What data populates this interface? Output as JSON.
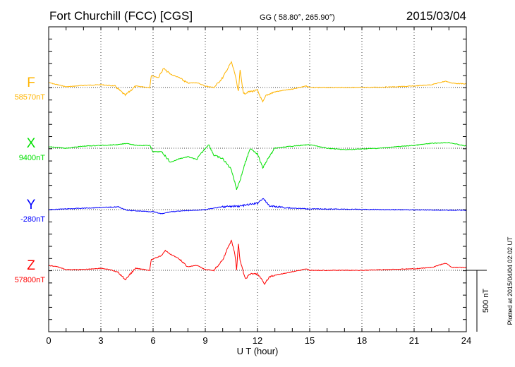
{
  "header": {
    "station": "Fort Churchill (FCC)  [CGS]",
    "coords": "GG ( 58.80°, 265.90°)",
    "date": "2015/03/04"
  },
  "footer": {
    "plotted": "Plotted at 2015/04/04 02:02 UT"
  },
  "chart_data": {
    "type": "line",
    "xlabel": "U T (hour)",
    "xlim": [
      0,
      24
    ],
    "xticks": [
      "0",
      "3",
      "6",
      "9",
      "12",
      "15",
      "18",
      "21",
      "24"
    ],
    "grid": "dotted vertical every 3 hours, dotted baseline per component",
    "scale_bar_label": "500 nT",
    "scale_bar_nT": 500,
    "series": [
      {
        "name": "F",
        "baseline_label": "58570nT",
        "color": "#ffb400",
        "x": [
          0,
          0.5,
          1,
          2,
          3,
          3.8,
          4.4,
          5,
          5.8,
          5.9,
          6.3,
          6.6,
          7,
          7.5,
          8,
          8.5,
          9,
          9.5,
          10,
          10.4,
          10.5,
          10.7,
          10.9,
          11,
          11.2,
          11.5,
          12,
          12.3,
          12.5,
          13,
          14,
          14.8,
          15,
          18,
          20,
          21,
          22,
          22.8,
          23.2,
          24
        ],
        "y": [
          40,
          23,
          6,
          17,
          23,
          12,
          -63,
          12,
          0,
          98,
          80,
          155,
          109,
          80,
          35,
          40,
          12,
          0,
          80,
          184,
          207,
          115,
          -35,
          138,
          -52,
          -35,
          -23,
          -121,
          -63,
          -35,
          -12,
          12,
          0,
          0,
          6,
          12,
          23,
          52,
          35,
          29
        ]
      },
      {
        "name": "X",
        "baseline_label": "9400nT",
        "color": "#00e000",
        "x": [
          0,
          1,
          2,
          3,
          4,
          4.5,
          5,
          5.8,
          6,
          6.5,
          7,
          7.5,
          8,
          8.5,
          9,
          9.2,
          9.5,
          10,
          10.5,
          10.8,
          11,
          11.3,
          11.6,
          12,
          12.3,
          12.6,
          13,
          14,
          15,
          16,
          17,
          18,
          19,
          20,
          21,
          22,
          23,
          24
        ],
        "y": [
          12,
          0,
          17,
          23,
          29,
          40,
          23,
          23,
          -29,
          -29,
          -115,
          -86,
          -69,
          -92,
          0,
          29,
          -58,
          -86,
          -173,
          -334,
          -259,
          -115,
          0,
          -46,
          -161,
          -86,
          0,
          17,
          29,
          0,
          -12,
          -6,
          0,
          12,
          23,
          40,
          46,
          17
        ]
      },
      {
        "name": "Y",
        "baseline_label": "-280nT",
        "color": "#0000ff",
        "x": [
          0,
          4,
          4.5,
          6,
          6.5,
          7,
          9,
          10,
          11,
          12,
          12.3,
          12.7,
          14,
          15,
          24
        ],
        "y": [
          0,
          23,
          -6,
          -17,
          -35,
          -17,
          0,
          23,
          29,
          52,
          92,
          29,
          12,
          6,
          -6
        ]
      },
      {
        "name": "Z",
        "baseline_label": "57800nT",
        "color": "#ff0000",
        "x": [
          0,
          0.5,
          1,
          2,
          3,
          3.5,
          4,
          4.4,
          5,
          5.8,
          5.9,
          6.5,
          6.7,
          7,
          7.5,
          8,
          8.5,
          9,
          9.5,
          10,
          10.5,
          10.7,
          10.8,
          10.9,
          11,
          11.3,
          11.6,
          12,
          12.4,
          12.7,
          13,
          14,
          14.8,
          15,
          18,
          21,
          22,
          22.8,
          23.2,
          24
        ],
        "y": [
          40,
          29,
          6,
          6,
          17,
          6,
          -17,
          -75,
          17,
          0,
          86,
          121,
          161,
          132,
          92,
          29,
          40,
          6,
          0,
          86,
          247,
          132,
          0,
          219,
          75,
          -69,
          -29,
          -29,
          -109,
          -52,
          -40,
          -12,
          12,
          0,
          0,
          12,
          23,
          58,
          23,
          23
        ]
      }
    ]
  }
}
